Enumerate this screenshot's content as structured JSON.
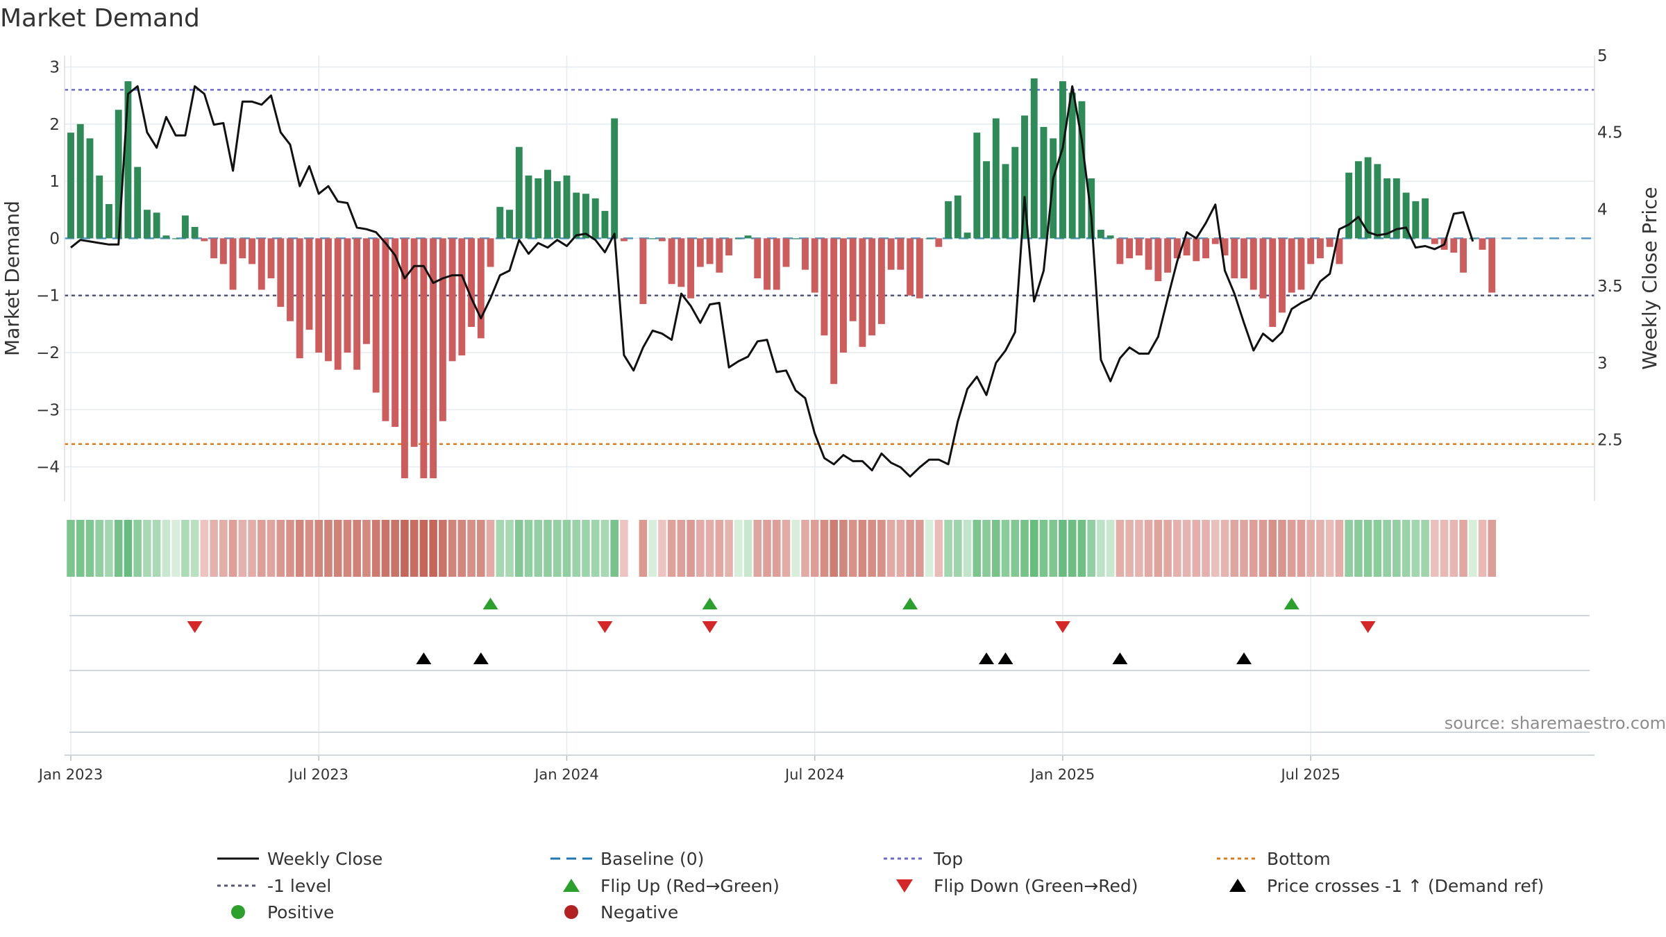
{
  "colors": {
    "pos_bar": "#2e8b57",
    "neg_bar": "#cd5c5c",
    "close": "#111111",
    "baseline": "#1f77b4",
    "top": "#6a6ad0",
    "minus1": "#555577",
    "bottom": "#e07b1a",
    "flip_up": "#2ca02c",
    "flip_down": "#d62728",
    "cross": "#000000",
    "positive": "#2ca02c",
    "negative": "#b22222",
    "grid": "#e6ebef",
    "source": "#8c8c8c"
  },
  "chart_data": {
    "type": "bar+line",
    "title": "Market Demand",
    "ylabel_left": "Market Demand",
    "ylabel_right": "Weekly Close Price",
    "ylim_left": [
      -4.6,
      3.2
    ],
    "ylim_right": [
      2.1,
      5.0
    ],
    "yticks_left": [
      3,
      2,
      1,
      0,
      -1,
      -2,
      -3,
      -4
    ],
    "yticks_left_labels": [
      "3",
      "2",
      "1",
      "0",
      "−1",
      "−2",
      "−3",
      "−4"
    ],
    "yticks_right": [
      5,
      4.5,
      4,
      3.5,
      3,
      2.5
    ],
    "yticks_right_labels": [
      "5",
      "4.5",
      "4",
      "3.5",
      "3",
      "2.5"
    ],
    "x_start": "2023-01-02",
    "x_end": "2025-09-29",
    "x_tick_labels": [
      "Jan 2023",
      "Jul 2023",
      "Jan 2024",
      "Jul 2024",
      "Jan 2025",
      "Jul 2025"
    ],
    "x_tick_weeks": [
      0,
      26,
      52,
      78,
      104,
      130
    ],
    "levels": {
      "top": 2.6,
      "minus1": -1,
      "bottom": -3.6,
      "baseline": 0
    },
    "missing_week": 59,
    "demand": [
      1.85,
      2.0,
      1.75,
      1.1,
      0.6,
      2.25,
      2.75,
      1.25,
      0.5,
      0.45,
      0.05,
      0.0,
      0.4,
      0.2,
      -0.05,
      -0.35,
      -0.45,
      -0.9,
      -0.35,
      -0.45,
      -0.9,
      -0.7,
      -1.2,
      -1.45,
      -2.1,
      -1.6,
      -2.0,
      -2.15,
      -2.3,
      -2.0,
      -2.3,
      -1.85,
      -2.7,
      -3.2,
      -3.3,
      -4.2,
      -3.65,
      -4.2,
      -4.2,
      -3.2,
      -2.15,
      -2.05,
      -1.55,
      -1.75,
      -0.5,
      0.55,
      0.5,
      1.6,
      1.1,
      1.05,
      1.2,
      1.0,
      1.1,
      0.8,
      0.78,
      0.7,
      0.48,
      2.1,
      -0.05,
      -0.75,
      -1.15,
      0.0,
      -0.05,
      -0.8,
      -0.85,
      -1.05,
      -0.5,
      -0.45,
      -0.6,
      -0.3,
      0.0,
      0.05,
      -0.7,
      -0.9,
      -0.9,
      -0.5,
      0.0,
      -0.55,
      -0.95,
      -1.7,
      -2.55,
      -2.0,
      -1.45,
      -1.9,
      -1.7,
      -1.5,
      -0.55,
      -0.55,
      -1.0,
      -1.05,
      0.0,
      -0.15,
      0.65,
      0.75,
      0.1,
      1.85,
      1.35,
      2.1,
      1.3,
      1.6,
      2.15,
      2.8,
      1.95,
      1.75,
      2.75,
      2.55,
      2.4,
      1.05,
      0.15,
      0.05,
      -0.45,
      -0.35,
      -0.3,
      -0.55,
      -0.75,
      -0.6,
      -0.35,
      -0.3,
      -0.4,
      -0.35,
      -0.1,
      -0.3,
      -0.7,
      -0.7,
      -0.9,
      -1.05,
      -1.55,
      -1.3,
      -0.95,
      -0.9,
      -0.45,
      -0.35,
      -0.15,
      -0.45,
      1.15,
      1.35,
      1.42,
      1.3,
      1.05,
      1.05,
      0.8,
      0.65,
      0.7,
      -0.1,
      -0.2,
      -0.25,
      -0.6,
      0.0,
      -0.2,
      -0.95
    ],
    "close": [
      3.75,
      3.8,
      3.79,
      3.78,
      3.77,
      3.77,
      4.75,
      4.8,
      4.5,
      4.4,
      4.6,
      4.48,
      4.48,
      4.8,
      4.75,
      4.55,
      4.56,
      4.25,
      4.7,
      4.7,
      4.68,
      4.74,
      4.5,
      4.42,
      4.15,
      4.28,
      4.1,
      4.15,
      4.05,
      4.04,
      3.88,
      3.87,
      3.85,
      3.78,
      3.7,
      3.55,
      3.63,
      3.63,
      3.52,
      3.55,
      3.57,
      3.57,
      3.42,
      3.29,
      3.42,
      3.57,
      3.6,
      3.8,
      3.71,
      3.78,
      3.75,
      3.8,
      3.76,
      3.83,
      3.84,
      3.8,
      3.72,
      3.84,
      3.05,
      2.95,
      3.1,
      3.21,
      3.19,
      3.15,
      3.45,
      3.37,
      3.26,
      3.38,
      3.39,
      2.97,
      3.01,
      3.04,
      3.14,
      3.15,
      2.94,
      2.95,
      2.82,
      2.77,
      2.54,
      2.38,
      2.34,
      2.4,
      2.36,
      2.36,
      2.3,
      2.41,
      2.35,
      2.32,
      2.26,
      2.32,
      2.37,
      2.37,
      2.34,
      2.62,
      2.83,
      2.91,
      2.79,
      3.0,
      3.08,
      3.2,
      4.08,
      3.4,
      3.6,
      4.2,
      4.4,
      4.8,
      4.45,
      3.95,
      3.02,
      2.88,
      3.03,
      3.1,
      3.06,
      3.06,
      3.17,
      3.42,
      3.66,
      3.85,
      3.81,
      3.91,
      4.03,
      3.6,
      3.45,
      3.26,
      3.08,
      3.19,
      3.14,
      3.2,
      3.35,
      3.39,
      3.42,
      3.53,
      3.58,
      3.87,
      3.9,
      3.95,
      3.85,
      3.83,
      3.84,
      3.87,
      3.88,
      3.75,
      3.76,
      3.74,
      3.77,
      3.97,
      3.98,
      3.79
    ],
    "heat_strip": "colour-coded demand per week (green positive, red negative)",
    "flip_up_weeks": [
      44,
      67,
      88,
      128
    ],
    "flip_down_weeks": [
      13,
      56,
      67,
      104,
      136
    ],
    "cross_weeks": [
      37,
      43,
      96,
      98,
      110,
      123
    ]
  },
  "source_text": "source: sharemaestro.com",
  "legend": [
    {
      "key": "line-solid",
      "color_key": "close",
      "label": "Weekly Close"
    },
    {
      "key": "line-dash",
      "color_key": "baseline",
      "label": "Baseline (0)"
    },
    {
      "key": "line-dot",
      "color_key": "top",
      "label": "Top"
    },
    {
      "key": "line-dot",
      "color_key": "bottom",
      "label": "Bottom"
    },
    {
      "key": "line-dot",
      "color_key": "minus1",
      "label": "-1 level"
    },
    {
      "key": "tri-up",
      "color_key": "flip_up",
      "label": "Flip Up (Red→Green)"
    },
    {
      "key": "tri-down",
      "color_key": "flip_down",
      "label": "Flip Down (Green→Red)"
    },
    {
      "key": "tri-up",
      "color_key": "cross",
      "label": "Price crosses -1 ↑ (Demand ref)"
    },
    {
      "key": "circle",
      "color_key": "positive",
      "label": "Positive"
    },
    {
      "key": "circle",
      "color_key": "negative",
      "label": "Negative"
    }
  ]
}
